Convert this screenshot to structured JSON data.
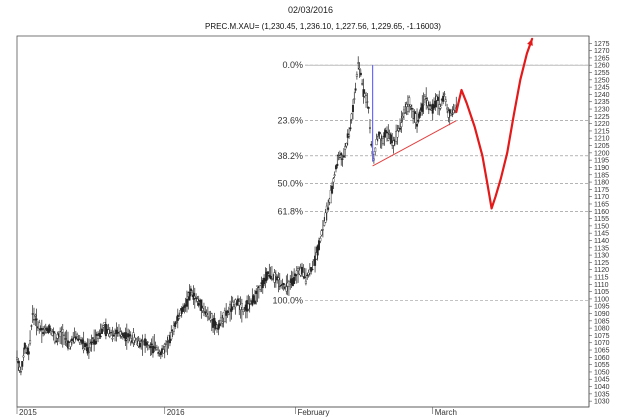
{
  "header": {
    "date": "02/03/2016",
    "instrument": "PREC.M.XAU= (1,230.45, 1,236.10, 1,227.56, 1,229.65, -1.16003)"
  },
  "chart_data": {
    "type": "candlestick",
    "title": "PREC.M.XAU= (1,230.45, 1,236.10, 1,227.56, 1,229.65, -1.16003)",
    "date_label": "02/03/2016",
    "ylim": [
      1026,
      1280
    ],
    "xlim": [
      0,
      410
    ],
    "y_ticks": [
      1030,
      1035,
      1040,
      1045,
      1050,
      1055,
      1060,
      1065,
      1070,
      1075,
      1080,
      1085,
      1090,
      1095,
      1100,
      1105,
      1110,
      1115,
      1120,
      1125,
      1130,
      1135,
      1140,
      1145,
      1150,
      1155,
      1160,
      1165,
      1170,
      1175,
      1180,
      1185,
      1190,
      1195,
      1200,
      1205,
      1210,
      1215,
      1220,
      1225,
      1230,
      1235,
      1240,
      1245,
      1250,
      1255,
      1260,
      1265,
      1270,
      1275
    ],
    "x_labels": [
      {
        "x": 0,
        "text": "2015"
      },
      {
        "x": 113,
        "text": "2016"
      },
      {
        "x": 213,
        "text": "February"
      },
      {
        "x": 318,
        "text": "March"
      }
    ],
    "fib_levels": [
      {
        "label": "0.0%",
        "value": 1260
      },
      {
        "label": "23.6%",
        "value": 1222
      },
      {
        "label": "38.2%",
        "value": 1198
      },
      {
        "label": "50.0%",
        "value": 1179
      },
      {
        "label": "61.8%",
        "value": 1160
      },
      {
        "label": "100.0%",
        "value": 1099
      }
    ],
    "price_path": [
      [
        0,
        1060
      ],
      [
        3,
        1050
      ],
      [
        6,
        1066
      ],
      [
        9,
        1063
      ],
      [
        12,
        1090
      ],
      [
        16,
        1082
      ],
      [
        20,
        1078
      ],
      [
        25,
        1080
      ],
      [
        30,
        1072
      ],
      [
        35,
        1076
      ],
      [
        40,
        1068
      ],
      [
        45,
        1075
      ],
      [
        50,
        1070
      ],
      [
        55,
        1065
      ],
      [
        58,
        1072
      ],
      [
        62,
        1075
      ],
      [
        66,
        1080
      ],
      [
        70,
        1078
      ],
      [
        74,
        1076
      ],
      [
        78,
        1077
      ],
      [
        82,
        1075
      ],
      [
        86,
        1074
      ],
      [
        90,
        1072
      ],
      [
        94,
        1070
      ],
      [
        98,
        1070
      ],
      [
        102,
        1066
      ],
      [
        106,
        1068
      ],
      [
        110,
        1062
      ],
      [
        113,
        1066
      ],
      [
        117,
        1072
      ],
      [
        121,
        1083
      ],
      [
        125,
        1090
      ],
      [
        129,
        1096
      ],
      [
        133,
        1105
      ],
      [
        137,
        1100
      ],
      [
        141,
        1095
      ],
      [
        145,
        1090
      ],
      [
        149,
        1086
      ],
      [
        153,
        1080
      ],
      [
        157,
        1086
      ],
      [
        161,
        1090
      ],
      [
        165,
        1095
      ],
      [
        169,
        1098
      ],
      [
        173,
        1092
      ],
      [
        177,
        1096
      ],
      [
        181,
        1100
      ],
      [
        185,
        1106
      ],
      [
        189,
        1112
      ],
      [
        193,
        1118
      ],
      [
        197,
        1114
      ],
      [
        201,
        1112
      ],
      [
        205,
        1108
      ],
      [
        209,
        1110
      ],
      [
        213,
        1115
      ],
      [
        217,
        1120
      ],
      [
        221,
        1115
      ],
      [
        225,
        1120
      ],
      [
        229,
        1130
      ],
      [
        233,
        1145
      ],
      [
        237,
        1160
      ],
      [
        240,
        1170
      ],
      [
        243,
        1185
      ],
      [
        246,
        1198
      ],
      [
        249,
        1196
      ],
      [
        252,
        1205
      ],
      [
        255,
        1218
      ],
      [
        257,
        1230
      ],
      [
        259,
        1244
      ],
      [
        261,
        1260
      ],
      [
        263,
        1254
      ],
      [
        265,
        1243
      ],
      [
        267,
        1238
      ],
      [
        269,
        1230
      ],
      [
        271,
        1205
      ],
      [
        273,
        1196
      ],
      [
        275,
        1208
      ],
      [
        277,
        1212
      ],
      [
        279,
        1206
      ],
      [
        282,
        1214
      ],
      [
        285,
        1212
      ],
      [
        288,
        1206
      ],
      [
        291,
        1214
      ],
      [
        294,
        1222
      ],
      [
        297,
        1230
      ],
      [
        300,
        1234
      ],
      [
        303,
        1226
      ],
      [
        306,
        1222
      ],
      [
        309,
        1228
      ],
      [
        312,
        1238
      ],
      [
        315,
        1232
      ],
      [
        318,
        1230
      ],
      [
        321,
        1236
      ],
      [
        324,
        1232
      ],
      [
        327,
        1240
      ],
      [
        330,
        1226
      ],
      [
        333,
        1228
      ],
      [
        336,
        1232
      ]
    ],
    "annotations": {
      "vertical_line": {
        "x": 272,
        "from": 1194,
        "to": 1260,
        "color": "#6b6bff"
      },
      "trend_line": {
        "from": [
          272,
          1191
        ],
        "to": [
          336,
          1222
        ],
        "color": "#e24040"
      },
      "projection": {
        "color": "#e41a1a",
        "points": [
          [
            336,
            1228
          ],
          [
            340,
            1243
          ],
          [
            344,
            1234
          ],
          [
            350,
            1218
          ],
          [
            356,
            1198
          ],
          [
            360,
            1178
          ],
          [
            363,
            1162
          ],
          [
            366,
            1170
          ],
          [
            370,
            1182
          ],
          [
            375,
            1200
          ],
          [
            380,
            1226
          ],
          [
            385,
            1250
          ],
          [
            390,
            1268
          ],
          [
            394,
            1278
          ]
        ]
      }
    }
  }
}
